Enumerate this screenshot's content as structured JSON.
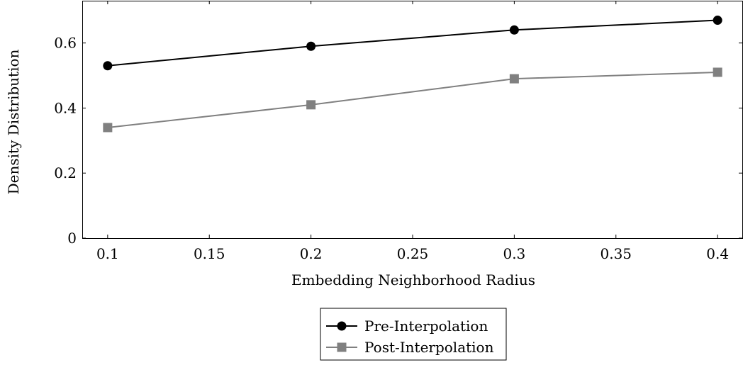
{
  "chart_data": {
    "type": "line",
    "title": "",
    "xlabel": "Embedding Neighborhood Radius",
    "ylabel": "Density Distribution",
    "x": [
      0.1,
      0.2,
      0.3,
      0.4
    ],
    "xlim": [
      0.0875,
      0.4125
    ],
    "ylim": [
      0,
      0.73
    ],
    "xticks": [
      0.1,
      0.15,
      0.2,
      0.25,
      0.3,
      0.35,
      0.4
    ],
    "xtick_labels": [
      "0.1",
      "0.15",
      "0.2",
      "0.25",
      "0.3",
      "0.35",
      "0.4"
    ],
    "yticks": [
      0,
      0.2,
      0.4,
      0.6
    ],
    "ytick_labels": [
      "0",
      "0.2",
      "0.4",
      "0.6"
    ],
    "grid": false,
    "legend_position": "bottom-center",
    "series": [
      {
        "name": "Pre-Interpolation",
        "values": [
          0.53,
          0.59,
          0.64,
          0.67
        ],
        "color": "#000000",
        "marker": "circle"
      },
      {
        "name": "Post-Interpolation",
        "values": [
          0.34,
          0.41,
          0.49,
          0.51
        ],
        "color": "#808080",
        "marker": "square"
      }
    ]
  }
}
